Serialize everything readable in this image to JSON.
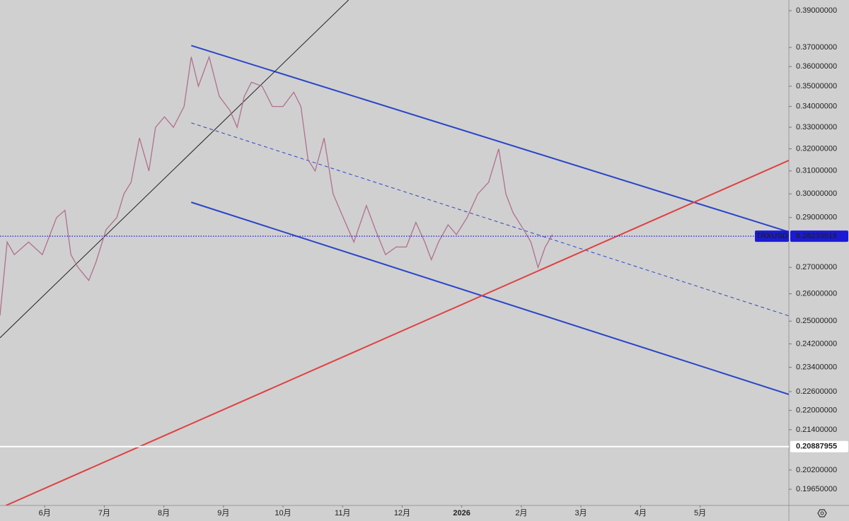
{
  "chart_data": {
    "type": "line",
    "log": true,
    "xlim": [
      5.25,
      18.49
    ],
    "ylim": [
      0.192,
      0.396
    ],
    "xticks": [
      {
        "value": 6,
        "label": "6月"
      },
      {
        "value": 7,
        "label": "7月"
      },
      {
        "value": 8,
        "label": "8月"
      },
      {
        "value": 9,
        "label": "9月"
      },
      {
        "value": 10,
        "label": "10月"
      },
      {
        "value": 11,
        "label": "11月"
      },
      {
        "value": 12,
        "label": "12月"
      },
      {
        "value": 13,
        "label": "2026"
      },
      {
        "value": 14,
        "label": "2月"
      },
      {
        "value": 15,
        "label": "3月"
      },
      {
        "value": 16,
        "label": "4月"
      },
      {
        "value": 17,
        "label": "5月"
      }
    ],
    "yticks": [
      {
        "value": 0.39,
        "label": "0.39000000"
      },
      {
        "value": 0.37,
        "label": "0.37000000"
      },
      {
        "value": 0.36,
        "label": "0.36000000"
      },
      {
        "value": 0.35,
        "label": "0.35000000"
      },
      {
        "value": 0.34,
        "label": "0.34000000"
      },
      {
        "value": 0.33,
        "label": "0.33000000"
      },
      {
        "value": 0.32,
        "label": "0.32000000"
      },
      {
        "value": 0.31,
        "label": "0.31000000"
      },
      {
        "value": 0.3,
        "label": "0.30000000"
      },
      {
        "value": 0.29,
        "label": "0.29000000"
      },
      {
        "value": 0.27,
        "label": "0.27000000"
      },
      {
        "value": 0.26,
        "label": "0.26000000"
      },
      {
        "value": 0.25,
        "label": "0.25000000"
      },
      {
        "value": 0.242,
        "label": "0.24200000"
      },
      {
        "value": 0.234,
        "label": "0.23400000"
      },
      {
        "value": 0.226,
        "label": "0.22600000"
      },
      {
        "value": 0.22,
        "label": "0.22000000"
      },
      {
        "value": 0.214,
        "label": "0.21400000"
      },
      {
        "value": 0.202,
        "label": "0.20200000"
      },
      {
        "value": 0.1965,
        "label": "0.19650000"
      }
    ],
    "series": [
      {
        "name": "TRXUSD",
        "color": "#b0708e",
        "x": [
          5.25,
          5.37,
          5.49,
          5.73,
          5.96,
          6.2,
          6.34,
          6.44,
          6.56,
          6.74,
          6.86,
          7.03,
          7.21,
          7.33,
          7.45,
          7.59,
          7.75,
          7.86,
          8.01,
          8.16,
          8.34,
          8.46,
          8.58,
          8.76,
          8.93,
          9.11,
          9.23,
          9.35,
          9.47,
          9.65,
          9.82,
          10.0,
          10.18,
          10.3,
          10.42,
          10.54,
          10.69,
          10.84,
          11.01,
          11.19,
          11.4,
          11.55,
          11.72,
          11.9,
          12.07,
          12.23,
          12.38,
          12.49,
          12.61,
          12.77,
          12.91,
          13.09,
          13.27,
          13.45,
          13.62,
          13.74,
          13.86,
          14.04,
          14.16,
          14.28,
          14.4,
          14.52
        ],
        "values": [
          0.252,
          0.28,
          0.275,
          0.28,
          0.275,
          0.29,
          0.293,
          0.275,
          0.27,
          0.265,
          0.272,
          0.285,
          0.29,
          0.3,
          0.305,
          0.325,
          0.31,
          0.33,
          0.335,
          0.33,
          0.34,
          0.365,
          0.35,
          0.365,
          0.345,
          0.338,
          0.33,
          0.345,
          0.352,
          0.35,
          0.34,
          0.34,
          0.347,
          0.34,
          0.315,
          0.31,
          0.325,
          0.3,
          0.29,
          0.28,
          0.295,
          0.285,
          0.275,
          0.278,
          0.278,
          0.288,
          0.28,
          0.273,
          0.28,
          0.287,
          0.283,
          0.29,
          0.3,
          0.305,
          0.32,
          0.3,
          0.292,
          0.285,
          0.28,
          0.27,
          0.278,
          0.283
        ]
      }
    ],
    "lines": [
      {
        "color": "#2a45c8",
        "style": "solid",
        "x": [
          8.46,
          18.49
        ],
        "values": [
          0.371,
          0.2841
        ]
      },
      {
        "color": "#2a45c8",
        "style": "solid",
        "x": [
          8.46,
          18.49
        ],
        "values": [
          0.2964,
          0.2251
        ]
      },
      {
        "color": "#2a45c8",
        "style": "dashed",
        "x": [
          8.46,
          18.49
        ],
        "values": [
          0.3321,
          0.2519
        ]
      },
      {
        "color": "#e04040",
        "style": "solid",
        "x": [
          5.35,
          18.49
        ],
        "values": [
          0.192,
          0.3147
        ]
      },
      {
        "color": "#222222",
        "style": "solid",
        "x": [
          5.25,
          11.1
        ],
        "values": [
          0.2441,
          0.396
        ]
      }
    ],
    "price_lines": [
      {
        "name": "TRXUSD",
        "value": 0.28233516,
        "color": "#1a1ad6",
        "style": "dotted"
      },
      {
        "value": 0.20887955,
        "color": "#ffffff",
        "style": "solid"
      }
    ]
  }
}
